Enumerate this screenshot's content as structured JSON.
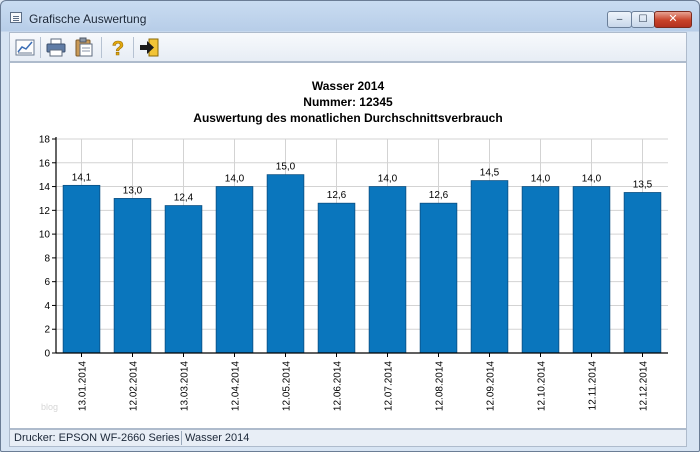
{
  "window": {
    "title": "Grafische Auswertung",
    "controls": {
      "minimize": "–",
      "maximize": "☐",
      "close": "✕"
    }
  },
  "toolbar": {
    "items": [
      {
        "icon": "chart-view-icon"
      },
      {
        "icon": "printer-icon"
      },
      {
        "icon": "clipboard-icon"
      },
      {
        "icon": "help-icon"
      },
      {
        "icon": "exit-icon"
      }
    ]
  },
  "chart": {
    "title": "Wasser 2014",
    "subtitle": "Nummer: 12345",
    "caption": "Auswertung des monatlichen Durchschnittsverbrauch"
  },
  "chart_data": {
    "type": "bar",
    "categories": [
      "13.01.2014",
      "12.02.2014",
      "13.03.2014",
      "12.04.2014",
      "12.05.2014",
      "12.06.2014",
      "12.07.2014",
      "12.08.2014",
      "12.09.2014",
      "12.10.2014",
      "12.11.2014",
      "12.12.2014"
    ],
    "values": [
      14.1,
      13.0,
      12.4,
      14.0,
      15.0,
      12.6,
      14.0,
      12.6,
      14.5,
      14.0,
      14.0,
      13.5
    ],
    "value_labels": [
      "14,1",
      "13,0",
      "12,4",
      "14,0",
      "15,0",
      "12,6",
      "14,0",
      "12,6",
      "14,5",
      "14,0",
      "14,0",
      "13,5"
    ],
    "yticks": [
      0,
      2,
      4,
      6,
      8,
      10,
      12,
      14,
      16,
      18
    ],
    "ytick_labels": [
      "0",
      "2",
      "4",
      "6",
      "8",
      "10",
      "12",
      "14",
      "16",
      "18"
    ],
    "ylim": [
      0,
      18
    ],
    "grid": true,
    "bar_color": "#0a76bd"
  },
  "watermark": "blog",
  "statusbar": {
    "printer": "Drucker: EPSON WF-2660 Series",
    "dataset": "Wasser 2014"
  }
}
